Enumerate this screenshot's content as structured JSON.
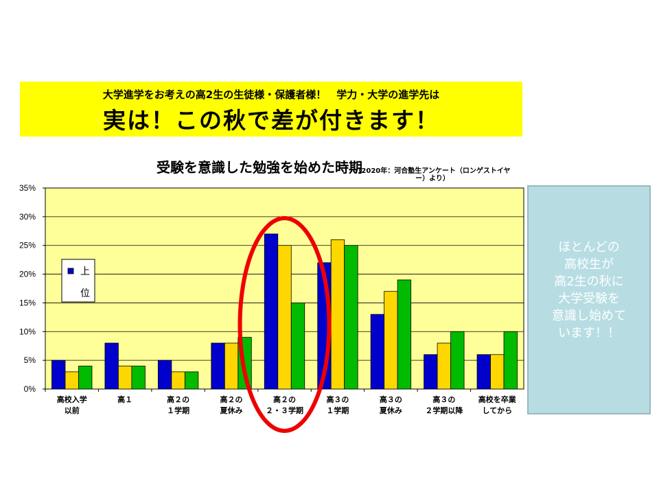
{
  "banner": {
    "line1": "大学進学をお考えの高2生の生徒様・保護者様！　学力・大学の進学先は",
    "line2": "実は！この秋で差が付きます！"
  },
  "note": {
    "lines": [
      "ほとんどの",
      "高校生が",
      "高2生の秋に",
      "大学受験を",
      "意識し始めて",
      "います！！"
    ]
  },
  "chart_data": {
    "type": "bar",
    "title": "受験を意識した勉強を始めた時期",
    "subtitle": "（2020年：河合塾生アンケート（ロンゲストイヤー）より）",
    "categories": [
      [
        "高校入学",
        "以前"
      ],
      [
        "高１",
        ""
      ],
      [
        "高２の",
        "１学期"
      ],
      [
        "高２の",
        "夏休み"
      ],
      [
        "高２の",
        "２・３学期"
      ],
      [
        "高３の",
        "１学期"
      ],
      [
        "高３の",
        "夏休み"
      ],
      [
        "高３の",
        "２学期以降"
      ],
      [
        "高校を卒業",
        "してから"
      ]
    ],
    "series": [
      {
        "name": "上位",
        "color": "#0000cc",
        "values": [
          5,
          8,
          5,
          8,
          27,
          22,
          13,
          6,
          6
        ]
      },
      {
        "color": "#ffd700",
        "values": [
          3,
          4,
          3,
          8,
          25,
          26,
          17,
          8,
          6
        ]
      },
      {
        "color": "#00bb00",
        "values": [
          4,
          4,
          3,
          9,
          15,
          25,
          19,
          10,
          10
        ]
      }
    ],
    "ylim": [
      0,
      35
    ],
    "yticks": [
      0,
      5,
      10,
      15,
      20,
      25,
      30,
      35
    ],
    "ytick_labels": [
      "0%",
      "5%",
      "10%",
      "15%",
      "20%",
      "25%",
      "30%",
      "35%"
    ],
    "grid": true,
    "plot_background": "#ffff99",
    "legend_placement": "left",
    "legend_label_chars": [
      "上",
      "位"
    ],
    "highlight": {
      "category_index": 4,
      "color": "#ee0000"
    }
  }
}
